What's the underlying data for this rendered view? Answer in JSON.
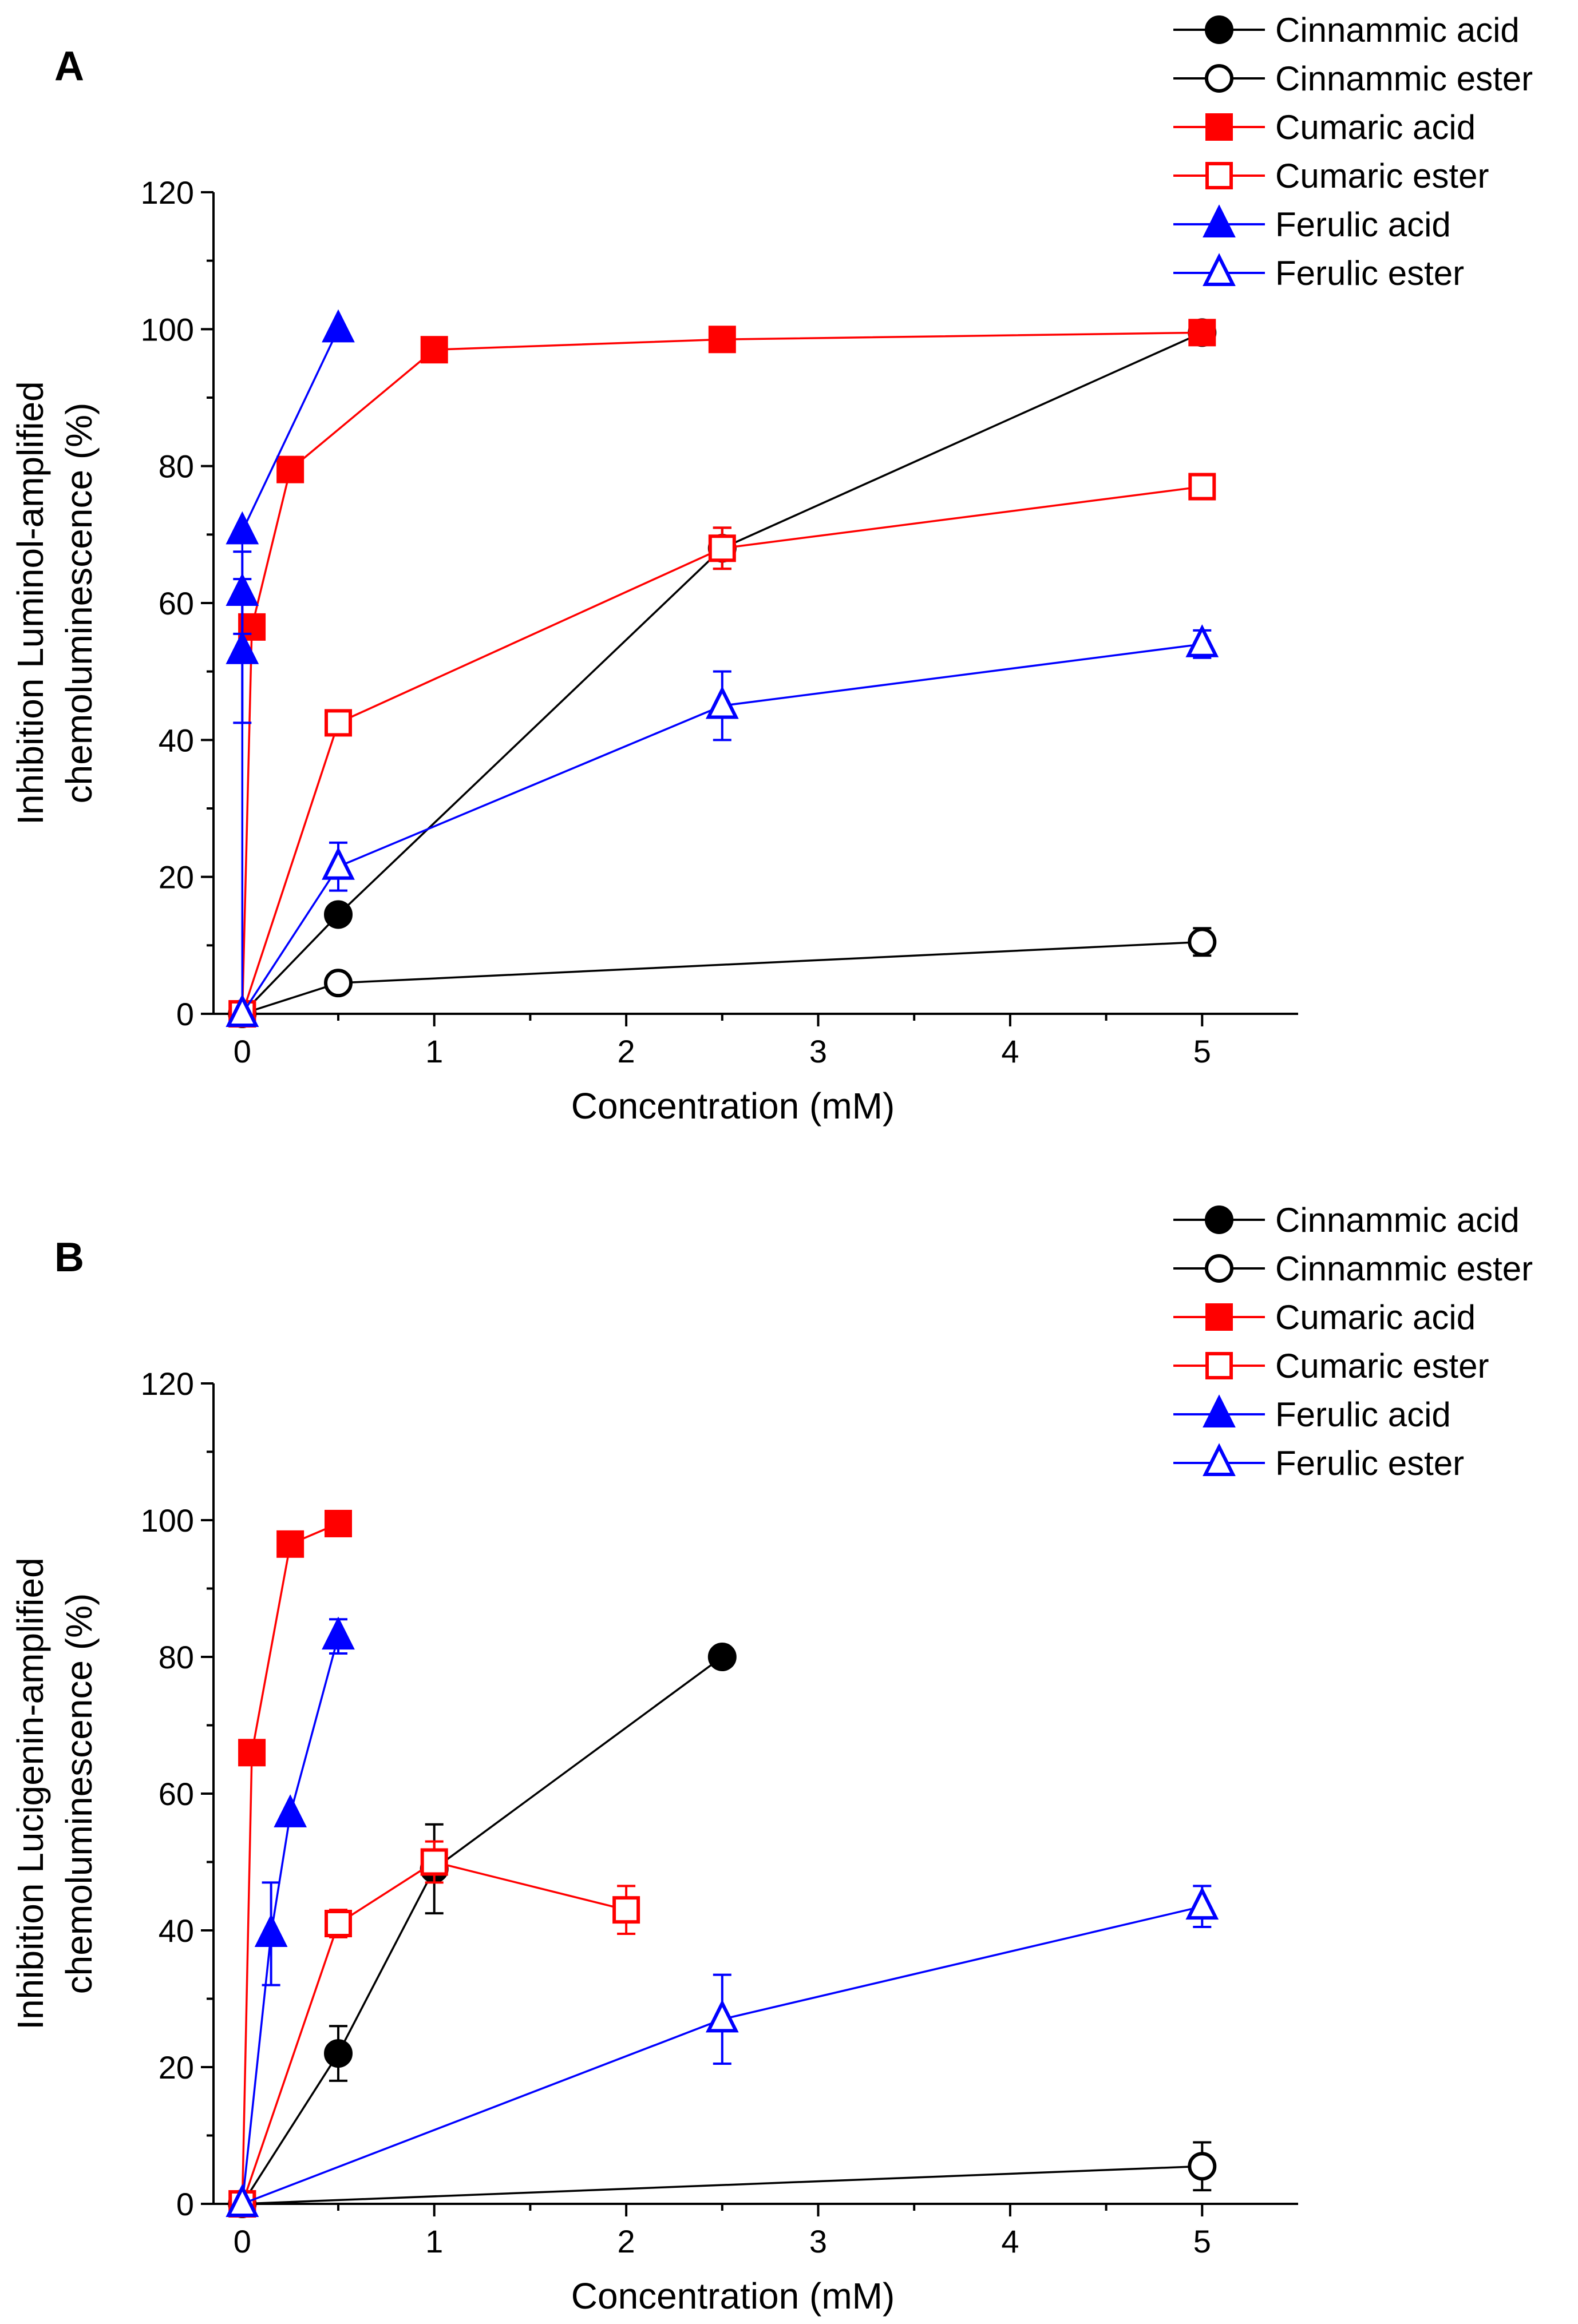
{
  "figure": {
    "panels": [
      "A",
      "B"
    ],
    "legend_entries": [
      "Cinnammic acid",
      "Cinnammic ester",
      "Cumaric acid",
      "Cumaric ester",
      "Ferulic acid",
      "Ferulic ester"
    ]
  },
  "series_styles": [
    {
      "name": "Cinnammic acid",
      "color": "#000000",
      "marker": "circle",
      "filled": true
    },
    {
      "name": "Cinnammic ester",
      "color": "#000000",
      "marker": "circle",
      "filled": false
    },
    {
      "name": "Cumaric acid",
      "color": "#ff0000",
      "marker": "square",
      "filled": true
    },
    {
      "name": "Cumaric ester",
      "color": "#ff0000",
      "marker": "square",
      "filled": false
    },
    {
      "name": "Ferulic acid",
      "color": "#0000ff",
      "marker": "triangle",
      "filled": true
    },
    {
      "name": "Ferulic ester",
      "color": "#0000ff",
      "marker": "triangle",
      "filled": false
    }
  ],
  "chart_data": [
    {
      "type": "line",
      "panel_label": "A",
      "xlabel": "Concentration (mM)",
      "ylabel_lines": [
        "Inhibition Luminol-amplified",
        "chemoluminescence (%)"
      ],
      "xlim": [
        -0.15,
        5.5
      ],
      "ylim": [
        0,
        120
      ],
      "xticks": [
        0,
        1,
        2,
        3,
        4,
        5
      ],
      "yticks": [
        0,
        20,
        40,
        60,
        80,
        100,
        120
      ],
      "legend_position": "top-right",
      "series": [
        {
          "name": "Cinnammic acid",
          "x": [
            0,
            0.5,
            2.5,
            5
          ],
          "y": [
            0,
            14.5,
            68,
            99.5
          ],
          "err": [
            0,
            0,
            3,
            0
          ]
        },
        {
          "name": "Cinnammic ester",
          "x": [
            0,
            0.5,
            5
          ],
          "y": [
            0,
            4.5,
            10.5
          ],
          "err": [
            0,
            0,
            2
          ]
        },
        {
          "name": "Cumaric acid",
          "x": [
            0,
            0.05,
            0.25,
            1,
            2.5,
            5
          ],
          "y": [
            0,
            56.5,
            79.5,
            97,
            98.5,
            99.5
          ],
          "err": [
            0,
            0,
            0,
            1.5,
            0,
            0
          ]
        },
        {
          "name": "Cumaric ester",
          "x": [
            0,
            0.5,
            2.5,
            5
          ],
          "y": [
            0,
            42.5,
            68,
            77
          ],
          "err": [
            0,
            0,
            3,
            0
          ]
        },
        {
          "name": "Ferulic acid",
          "x": [
            0,
            0,
            0,
            0,
            0.5
          ],
          "y": [
            0,
            53,
            61.5,
            70.5,
            100
          ],
          "err": [
            0,
            10.5,
            6,
            0,
            0
          ]
        },
        {
          "name": "Ferulic ester",
          "x": [
            0,
            0.5,
            2.5,
            5
          ],
          "y": [
            0,
            21.5,
            45,
            54
          ],
          "err": [
            0,
            3.5,
            5,
            2
          ]
        }
      ]
    },
    {
      "type": "line",
      "panel_label": "B",
      "xlabel": "Concentration (mM)",
      "ylabel_lines": [
        "Inhibition Lucigenin-amplified",
        "chemoluminescence (%)"
      ],
      "xlim": [
        -0.15,
        5.5
      ],
      "ylim": [
        0,
        120
      ],
      "xticks": [
        0,
        1,
        2,
        3,
        4,
        5
      ],
      "yticks": [
        0,
        20,
        40,
        60,
        80,
        100,
        120
      ],
      "legend_position": "top-right",
      "series": [
        {
          "name": "Cinnammic acid",
          "x": [
            0,
            0.5,
            1,
            2.5
          ],
          "y": [
            0,
            22,
            49,
            80
          ],
          "err": [
            0,
            4,
            6.5,
            0
          ]
        },
        {
          "name": "Cinnammic ester",
          "x": [
            0,
            5
          ],
          "y": [
            0,
            5.5
          ],
          "err": [
            0,
            3.5
          ]
        },
        {
          "name": "Cumaric acid",
          "x": [
            0,
            0.05,
            0.25,
            0.5
          ],
          "y": [
            0,
            66,
            96.5,
            99.5
          ],
          "err": [
            0,
            0,
            0,
            0
          ]
        },
        {
          "name": "Cumaric ester",
          "x": [
            0,
            0.5,
            1,
            2
          ],
          "y": [
            0,
            41,
            50,
            43
          ],
          "err": [
            0,
            2,
            3,
            3.5
          ]
        },
        {
          "name": "Ferulic acid",
          "x": [
            0,
            0.15,
            0.25,
            0.5
          ],
          "y": [
            0,
            39.5,
            57,
            83
          ],
          "err": [
            0,
            7.5,
            0,
            2.5
          ]
        },
        {
          "name": "Ferulic ester",
          "x": [
            0,
            2.5,
            5
          ],
          "y": [
            0,
            27,
            43.5
          ],
          "err": [
            0,
            6.5,
            3
          ]
        }
      ]
    }
  ]
}
